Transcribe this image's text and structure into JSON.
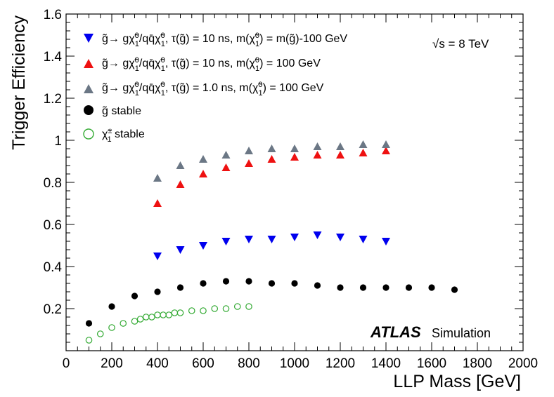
{
  "chart_data": {
    "type": "scatter",
    "title": "",
    "xlabel": "LLP Mass [GeV]",
    "ylabel": "Trigger Efficiency",
    "xlim": [
      0,
      2000
    ],
    "ylim": [
      0,
      1.6
    ],
    "grid": false,
    "legend_position": "top-left",
    "x_ticks": [
      "0",
      "200",
      "400",
      "600",
      "800",
      "1000",
      "1200",
      "1400",
      "1600",
      "1800",
      "2000"
    ],
    "y_ticks": [
      "0.2",
      "0.4",
      "0.6",
      "0.8",
      "1",
      "1.2",
      "1.4",
      "1.6"
    ],
    "annotations": {
      "energy": "√s = 8 TeV",
      "experiment": "ATLAS",
      "label": "Simulation"
    },
    "series": [
      {
        "name": "g̃→ gχ̃₁⁰/qq̄χ̃₁⁰, τ(g̃) = 10 ns, m(χ̃₁⁰) = m(g̃)-100 GeV",
        "marker": "triangle-down",
        "color": "#0000ee",
        "x": [
          400,
          500,
          600,
          700,
          800,
          900,
          1000,
          1100,
          1200,
          1300,
          1400
        ],
        "y": [
          0.45,
          0.48,
          0.5,
          0.52,
          0.53,
          0.53,
          0.54,
          0.55,
          0.54,
          0.53,
          0.52
        ]
      },
      {
        "name": "g̃→ gχ̃₁⁰/qq̄χ̃₁⁰, τ(g̃) = 10 ns, m(χ̃₁⁰) = 100 GeV",
        "marker": "triangle-up",
        "color": "#ee1111",
        "x": [
          400,
          500,
          600,
          700,
          800,
          900,
          1000,
          1100,
          1200,
          1300,
          1400
        ],
        "y": [
          0.7,
          0.79,
          0.84,
          0.87,
          0.89,
          0.91,
          0.92,
          0.93,
          0.93,
          0.94,
          0.95
        ]
      },
      {
        "name": "g̃→ gχ̃₁⁰/qq̄χ̃₁⁰, τ(g̃) = 1.0 ns, m(χ̃₁⁰) = 100 GeV",
        "marker": "triangle-up",
        "color": "#6b7785",
        "x": [
          400,
          500,
          600,
          700,
          800,
          900,
          1000,
          1100,
          1200,
          1300,
          1400
        ],
        "y": [
          0.82,
          0.88,
          0.91,
          0.93,
          0.95,
          0.96,
          0.96,
          0.97,
          0.97,
          0.98,
          0.98
        ]
      },
      {
        "name": "g̃ stable",
        "marker": "circle",
        "color": "#000000",
        "x": [
          100,
          200,
          300,
          400,
          500,
          600,
          700,
          800,
          900,
          1000,
          1100,
          1200,
          1300,
          1400,
          1500,
          1600,
          1700
        ],
        "y": [
          0.13,
          0.21,
          0.26,
          0.28,
          0.3,
          0.32,
          0.33,
          0.33,
          0.32,
          0.32,
          0.31,
          0.3,
          0.3,
          0.3,
          0.3,
          0.3,
          0.29
        ]
      },
      {
        "name": "χ̃₁± stable",
        "marker": "circle-open",
        "color": "#33aa33",
        "x": [
          100,
          150,
          200,
          250,
          300,
          325,
          350,
          375,
          400,
          425,
          450,
          475,
          500,
          550,
          600,
          650,
          700,
          750,
          800
        ],
        "y": [
          0.05,
          0.08,
          0.11,
          0.13,
          0.14,
          0.15,
          0.16,
          0.16,
          0.17,
          0.17,
          0.17,
          0.18,
          0.18,
          0.19,
          0.19,
          0.2,
          0.2,
          0.21,
          0.21
        ]
      }
    ]
  },
  "legend": {
    "entries": [
      {
        "g": "g̃→ g",
        "chi": "χ̃",
        "sup": "0",
        "sub": "1",
        "mid": "/qq̄",
        "chi2": "χ̃",
        "sup2": "0",
        "sub2": "1",
        "tail1": ", τ(g̃) = 10 ns, m(",
        "chi3": "χ̃",
        "sup3": "0",
        "sub3": "1",
        "tail2": ") = m(g̃)-100 GeV"
      },
      {
        "g": "g̃→ g",
        "chi": "χ̃",
        "sup": "0",
        "sub": "1",
        "mid": "/qq̄",
        "chi2": "χ̃",
        "sup2": "0",
        "sub2": "1",
        "tail1": ", τ(g̃) = 10 ns, m(",
        "chi3": "χ̃",
        "sup3": "0",
        "sub3": "1",
        "tail2": ") = 100 GeV"
      },
      {
        "g": "g̃→ g",
        "chi": "χ̃",
        "sup": "0",
        "sub": "1",
        "mid": "/qq̄",
        "chi2": "χ̃",
        "sup2": "0",
        "sub2": "1",
        "tail1": ", τ(g̃) = 1.0 ns, m(",
        "chi3": "χ̃",
        "sup3": "0",
        "sub3": "1",
        "tail2": ") = 100 GeV"
      },
      {
        "text": "g̃ stable"
      },
      {
        "chi": "χ̃",
        "sup": "±",
        "sub": "1",
        "tail": " stable"
      }
    ]
  }
}
